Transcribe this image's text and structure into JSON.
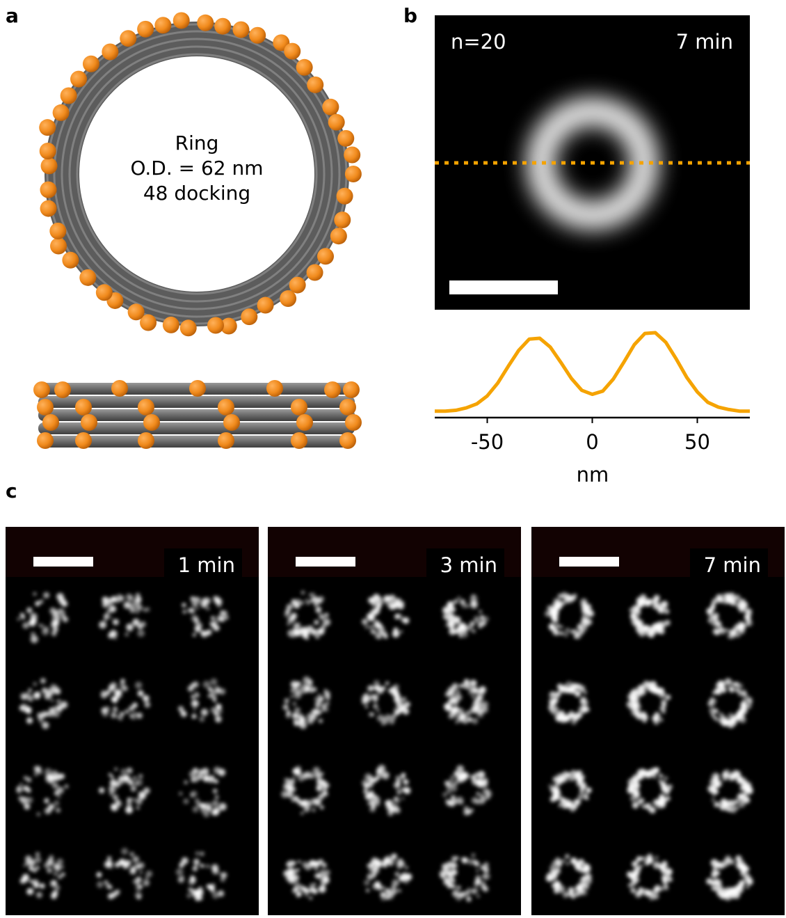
{
  "panels": {
    "a": {
      "label": "a",
      "ring_text": [
        "Ring",
        "O.D. = 62 nm",
        "48 docking"
      ]
    },
    "b": {
      "label": "b",
      "n_label": "n=20",
      "time_label": "7 min",
      "profile": {
        "type": "line",
        "xlabel": "nm",
        "color": "#f5a300",
        "x": [
          -75,
          -70,
          -65,
          -60,
          -55,
          -50,
          -45,
          -40,
          -35,
          -30,
          -25,
          -20,
          -15,
          -10,
          -5,
          0,
          5,
          10,
          15,
          20,
          25,
          30,
          35,
          40,
          45,
          50,
          55,
          60,
          65,
          70,
          75
        ],
        "values": [
          0.02,
          0.02,
          0.03,
          0.06,
          0.11,
          0.21,
          0.37,
          0.58,
          0.78,
          0.92,
          0.93,
          0.82,
          0.63,
          0.43,
          0.28,
          0.23,
          0.27,
          0.42,
          0.63,
          0.85,
          0.99,
          1.0,
          0.88,
          0.67,
          0.44,
          0.26,
          0.13,
          0.07,
          0.04,
          0.02,
          0.02
        ],
        "xlim": [
          -75,
          75
        ],
        "ylim": [
          0,
          1
        ],
        "xticks": [
          -50,
          0,
          50
        ]
      }
    },
    "c": {
      "label": "c",
      "time_labels": [
        "1 min",
        "3 min",
        "7 min"
      ]
    }
  }
}
